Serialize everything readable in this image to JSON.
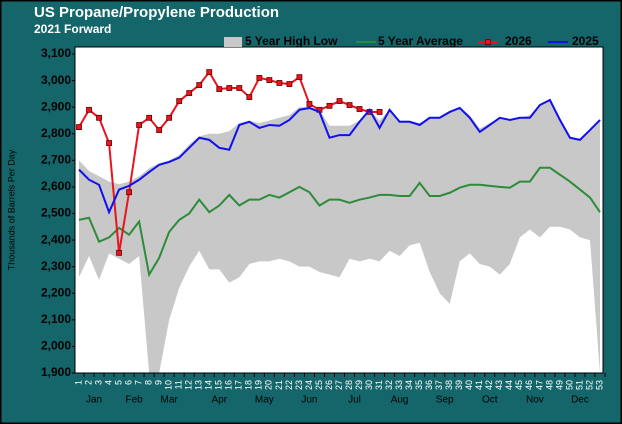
{
  "chart_data": {
    "type": "line",
    "title": "US Propane/Propylene Production",
    "subtitle": "2021 Forward",
    "y_label": "Thousands of Barrels Per Day",
    "categories": [
      "1",
      "2",
      "3",
      "4",
      "5",
      "6",
      "7",
      "8",
      "9",
      "10",
      "11",
      "12",
      "13",
      "14",
      "15",
      "16",
      "17",
      "18",
      "19",
      "20",
      "21",
      "22",
      "23",
      "24",
      "25",
      "26",
      "27",
      "28",
      "29",
      "30",
      "31",
      "32",
      "33",
      "34",
      "35",
      "36",
      "37",
      "38",
      "39",
      "40",
      "41",
      "42",
      "43",
      "44",
      "45",
      "46",
      "47",
      "48",
      "49",
      "50",
      "51",
      "52",
      "53"
    ],
    "month_labels": [
      "Jan",
      "Feb",
      "Mar",
      "Apr",
      "May",
      "Jun",
      "Jul",
      "Aug",
      "Sep",
      "Oct",
      "Nov",
      "Dec"
    ],
    "ylim": [
      1900,
      3100
    ],
    "yticks": [
      {
        "value": 1900,
        "label": "1,900"
      },
      {
        "value": 2000,
        "label": "2,000"
      },
      {
        "value": 2100,
        "label": "2,100"
      },
      {
        "value": 2200,
        "label": "2,200"
      },
      {
        "value": 2300,
        "label": "2,300"
      },
      {
        "value": 2400,
        "label": "2,400"
      },
      {
        "value": 2500,
        "label": "2,500"
      },
      {
        "value": 2600,
        "label": "2,600"
      },
      {
        "value": 2700,
        "label": "2,700"
      },
      {
        "value": 2800,
        "label": "2,800"
      },
      {
        "value": 2900,
        "label": "2,900"
      },
      {
        "value": 3000,
        "label": "3,000"
      },
      {
        "value": 3100,
        "label": "3,100"
      }
    ],
    "band": {
      "name": "5 Year High Low",
      "color": "#c8c8c8",
      "high": [
        2700,
        2660,
        2640,
        2620,
        2610,
        2620,
        2640,
        2670,
        2690,
        2700,
        2720,
        2760,
        2790,
        2800,
        2800,
        2810,
        2840,
        2850,
        2840,
        2850,
        2860,
        2870,
        2900,
        2900,
        2890,
        2830,
        2830,
        2830,
        2850,
        2890,
        2850,
        2890,
        2850,
        2850,
        2840,
        2860,
        2860,
        2880,
        2900,
        2870,
        2820,
        2840,
        2860,
        2850,
        2860,
        2870,
        2910,
        2930,
        2860,
        2790,
        2780,
        2815,
        2850
      ],
      "low": [
        2260,
        2340,
        2250,
        2350,
        2330,
        2310,
        2340,
        1900,
        1900,
        2100,
        2220,
        2300,
        2360,
        2290,
        2290,
        2240,
        2260,
        2310,
        2320,
        2320,
        2330,
        2320,
        2300,
        2300,
        2280,
        2270,
        2260,
        2330,
        2320,
        2330,
        2320,
        2360,
        2340,
        2380,
        2390,
        2280,
        2200,
        2160,
        2320,
        2350,
        2310,
        2300,
        2270,
        2310,
        2410,
        2440,
        2410,
        2450,
        2450,
        2440,
        2410,
        2400,
        1900
      ]
    },
    "series": [
      {
        "name": "5 Year Average",
        "color": "#2e8b3a",
        "markers": false,
        "values": [
          2476,
          2484,
          2394,
          2410,
          2446,
          2420,
          2470,
          2270,
          2333,
          2431,
          2476,
          2500,
          2552,
          2505,
          2530,
          2570,
          2530,
          2552,
          2552,
          2570,
          2560,
          2580,
          2600,
          2580,
          2530,
          2552,
          2552,
          2540,
          2552,
          2560,
          2570,
          2570,
          2566,
          2566,
          2615,
          2566,
          2566,
          2578,
          2597,
          2608,
          2608,
          2604,
          2600,
          2597,
          2620,
          2620,
          2672,
          2672,
          2646,
          2620,
          2590,
          2560,
          2505
        ]
      },
      {
        "name": "2026",
        "color": "#e8141e",
        "markers": true,
        "values": [
          2825,
          2890,
          2860,
          2765,
          2352,
          2580,
          2833,
          2860,
          2814,
          2860,
          2923,
          2953,
          2983,
          3032,
          2968,
          2972,
          2972,
          2938,
          3010,
          3002,
          2991,
          2987,
          3013,
          2912,
          2890,
          2905,
          2923,
          2908,
          2893,
          2882,
          2882,
          null,
          null,
          null,
          null,
          null,
          null,
          null,
          null,
          null,
          null,
          null,
          null,
          null,
          null,
          null,
          null,
          null,
          null,
          null,
          null,
          null,
          null
        ]
      },
      {
        "name": "2025",
        "color": "#1010ee",
        "markers": false,
        "values": [
          2665,
          2627,
          2608,
          2505,
          2590,
          2604,
          2627,
          2656,
          2683,
          2694,
          2710,
          2747,
          2785,
          2777,
          2747,
          2740,
          2833,
          2845,
          2822,
          2833,
          2830,
          2852,
          2890,
          2897,
          2882,
          2785,
          2795,
          2795,
          2845,
          2890,
          2822,
          2890,
          2845,
          2845,
          2833,
          2860,
          2860,
          2882,
          2897,
          2860,
          2807,
          2833,
          2860,
          2852,
          2860,
          2860,
          2908,
          2927,
          2852,
          2785,
          2777,
          2814,
          2852
        ]
      }
    ]
  }
}
